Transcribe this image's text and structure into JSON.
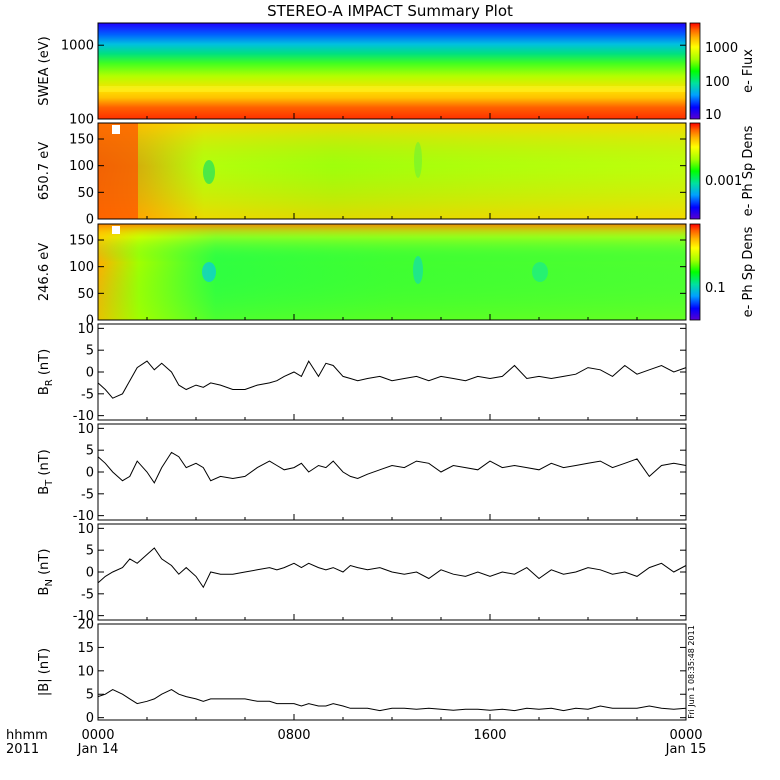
{
  "title": "STEREO-A IMPACT Summary Plot",
  "stamp": "Fri Jun 1 08:35:48 2011",
  "xaxis": {
    "corner_top": "hhmm",
    "corner_bottom": "2011",
    "ticks": [
      {
        "hours": 0,
        "label": "0000",
        "date": "Jan 14"
      },
      {
        "hours": 8,
        "label": "0800",
        "date": ""
      },
      {
        "hours": 16,
        "label": "1600",
        "date": ""
      },
      {
        "hours": 24,
        "label": "0000",
        "date": "Jan 15"
      }
    ],
    "range_hours": [
      0,
      24
    ]
  },
  "colors": {
    "palette": [
      "#5a00d0",
      "#0000ff",
      "#00a0ff",
      "#00e0a0",
      "#00ff00",
      "#a0ff00",
      "#ffff00",
      "#ffb000",
      "#ff6000",
      "#ff0000"
    ]
  },
  "chart_data": [
    {
      "type": "heatmap",
      "ylabel": "SWEA (eV)",
      "yscale": "log",
      "ylim": [
        100,
        2000
      ],
      "yticks": [
        {
          "v": 100,
          "label": "100"
        },
        {
          "v": 1000,
          "label": "1000"
        }
      ],
      "colorbar": {
        "label": "e- Flux",
        "scale": "log",
        "ticks": [
          {
            "label": "1000"
          },
          {
            "label": "100"
          },
          {
            "label": "10"
          }
        ]
      }
    },
    {
      "type": "heatmap",
      "ylabel": "650.7 eV",
      "ylim": [
        0,
        180
      ],
      "yticks": [
        {
          "v": 0,
          "label": "0"
        },
        {
          "v": 50,
          "label": "50"
        },
        {
          "v": 100,
          "label": "100"
        },
        {
          "v": 150,
          "label": "150"
        }
      ],
      "colorbar": {
        "label": "e- Ph Sp Dens",
        "scale": "log",
        "ticks": [
          {
            "label": "0.001"
          }
        ]
      }
    },
    {
      "type": "heatmap",
      "ylabel": "246.6 eV",
      "ylim": [
        0,
        180
      ],
      "yticks": [
        {
          "v": 0,
          "label": "0"
        },
        {
          "v": 50,
          "label": "50"
        },
        {
          "v": 100,
          "label": "100"
        },
        {
          "v": 150,
          "label": "150"
        }
      ],
      "colorbar": {
        "label": "e- Ph Sp Dens",
        "scale": "log",
        "ticks": [
          {
            "label": "0.1"
          }
        ]
      }
    },
    {
      "type": "line",
      "ylabel": "B",
      "ylabel_sub": "R",
      "ylabel_unit": "(nT)",
      "ylim": [
        -11,
        11
      ],
      "yticks": [
        {
          "v": -10,
          "label": "-10"
        },
        {
          "v": -5,
          "label": "-5"
        },
        {
          "v": 0,
          "label": "0"
        },
        {
          "v": 5,
          "label": "5"
        },
        {
          "v": 10,
          "label": "10"
        }
      ],
      "x": [
        0,
        0.3,
        0.6,
        1,
        1.3,
        1.6,
        2,
        2.3,
        2.6,
        3,
        3.3,
        3.6,
        4,
        4.3,
        4.6,
        5,
        5.5,
        6,
        6.5,
        7,
        7.3,
        7.6,
        8,
        8.3,
        8.6,
        9,
        9.3,
        9.6,
        10,
        10.3,
        10.6,
        11,
        11.5,
        12,
        12.5,
        13,
        13.5,
        14,
        14.5,
        15,
        15.5,
        16,
        16.5,
        17,
        17.5,
        18,
        18.5,
        19,
        19.5,
        20,
        20.5,
        21,
        21.5,
        22,
        22.5,
        23,
        23.5,
        24
      ],
      "values": [
        -2.5,
        -4,
        -6,
        -5,
        -2,
        1,
        2.5,
        0.5,
        2,
        0,
        -3,
        -4,
        -3,
        -3.5,
        -2.5,
        -3,
        -4,
        -4,
        -3,
        -2.5,
        -2,
        -1,
        0,
        -1,
        2.5,
        -1,
        2,
        1.5,
        -1,
        -1.5,
        -2,
        -1.5,
        -1,
        -2,
        -1.5,
        -1,
        -2,
        -1,
        -1.5,
        -2,
        -1,
        -1.5,
        -1,
        1.5,
        -1.5,
        -1,
        -1.5,
        -1,
        -0.5,
        1,
        0.5,
        -1,
        1.5,
        -0.5,
        0.5,
        1.5,
        0,
        1
      ]
    },
    {
      "type": "line",
      "ylabel": "B",
      "ylabel_sub": "T",
      "ylabel_unit": "(nT)",
      "ylim": [
        -11,
        11
      ],
      "yticks": [
        {
          "v": -10,
          "label": "-10"
        },
        {
          "v": -5,
          "label": "-5"
        },
        {
          "v": 0,
          "label": "0"
        },
        {
          "v": 5,
          "label": "5"
        },
        {
          "v": 10,
          "label": "10"
        }
      ],
      "x": [
        0,
        0.3,
        0.6,
        1,
        1.3,
        1.6,
        2,
        2.3,
        2.6,
        3,
        3.3,
        3.6,
        4,
        4.3,
        4.6,
        5,
        5.5,
        6,
        6.5,
        7,
        7.3,
        7.6,
        8,
        8.3,
        8.6,
        9,
        9.3,
        9.6,
        10,
        10.3,
        10.6,
        11,
        11.5,
        12,
        12.5,
        13,
        13.5,
        14,
        14.5,
        15,
        15.5,
        16,
        16.5,
        17,
        17.5,
        18,
        18.5,
        19,
        19.5,
        20,
        20.5,
        21,
        21.5,
        22,
        22.5,
        23,
        23.5,
        24
      ],
      "values": [
        3.5,
        2,
        0,
        -2,
        -1,
        2.5,
        0,
        -2.5,
        1,
        4.5,
        3.5,
        1,
        2,
        1,
        -2,
        -1,
        -1.5,
        -1,
        1,
        2.5,
        1.5,
        0.5,
        1,
        2,
        0,
        1.5,
        1,
        2.5,
        0,
        -1,
        -1.5,
        -0.5,
        0.5,
        1.5,
        1,
        2.5,
        2,
        0,
        1.5,
        1,
        0.5,
        2.5,
        1,
        1.5,
        1,
        0.5,
        2,
        1,
        1.5,
        2,
        2.5,
        1,
        2,
        3,
        -1,
        1.5,
        2,
        1.5
      ]
    },
    {
      "type": "line",
      "ylabel": "B",
      "ylabel_sub": "N",
      "ylabel_unit": "(nT)",
      "ylim": [
        -11,
        11
      ],
      "yticks": [
        {
          "v": -10,
          "label": "-10"
        },
        {
          "v": -5,
          "label": "-5"
        },
        {
          "v": 0,
          "label": "0"
        },
        {
          "v": 5,
          "label": "5"
        },
        {
          "v": 10,
          "label": "10"
        }
      ],
      "x": [
        0,
        0.3,
        0.6,
        1,
        1.3,
        1.6,
        2,
        2.3,
        2.6,
        3,
        3.3,
        3.6,
        4,
        4.3,
        4.6,
        5,
        5.5,
        6,
        6.5,
        7,
        7.3,
        7.6,
        8,
        8.3,
        8.6,
        9,
        9.3,
        9.6,
        10,
        10.3,
        10.6,
        11,
        11.5,
        12,
        12.5,
        13,
        13.5,
        14,
        14.5,
        15,
        15.5,
        16,
        16.5,
        17,
        17.5,
        18,
        18.5,
        19,
        19.5,
        20,
        20.5,
        21,
        21.5,
        22,
        22.5,
        23,
        23.5,
        24
      ],
      "values": [
        -2.5,
        -1,
        0,
        1,
        3,
        2,
        4,
        5.5,
        3,
        1.5,
        -0.5,
        1,
        -1,
        -3.5,
        0,
        -0.5,
        -0.5,
        0,
        0.5,
        1,
        0.5,
        1,
        2,
        1,
        2,
        1,
        0.5,
        1,
        0,
        1.5,
        1,
        0.5,
        1,
        0,
        -0.5,
        0,
        -1.5,
        0.5,
        -0.5,
        -1,
        0,
        -1,
        0,
        -0.5,
        1,
        -1.5,
        0.5,
        -0.5,
        0,
        1,
        0.5,
        -0.5,
        0,
        -1,
        1,
        2,
        0,
        1.5
      ]
    },
    {
      "type": "line",
      "ylabel": "|B|",
      "ylabel_unit": "(nT)",
      "ylim": [
        -0.5,
        20
      ],
      "yticks": [
        {
          "v": 0,
          "label": "0"
        },
        {
          "v": 5,
          "label": "5"
        },
        {
          "v": 10,
          "label": "10"
        },
        {
          "v": 15,
          "label": "15"
        },
        {
          "v": 20,
          "label": "20"
        }
      ],
      "x": [
        0,
        0.3,
        0.6,
        1,
        1.3,
        1.6,
        2,
        2.3,
        2.6,
        3,
        3.3,
        3.6,
        4,
        4.3,
        4.6,
        5,
        5.5,
        6,
        6.5,
        7,
        7.3,
        7.6,
        8,
        8.3,
        8.6,
        9,
        9.3,
        9.6,
        10,
        10.3,
        10.6,
        11,
        11.5,
        12,
        12.5,
        13,
        13.5,
        14,
        14.5,
        15,
        15.5,
        16,
        16.5,
        17,
        17.5,
        18,
        18.5,
        19,
        19.5,
        20,
        20.5,
        21,
        21.5,
        22,
        22.5,
        23,
        23.5,
        24
      ],
      "values": [
        4.5,
        5,
        6,
        5,
        4,
        3,
        3.5,
        4,
        5,
        6,
        5,
        4.5,
        4,
        3.5,
        4,
        4,
        4,
        4,
        3.5,
        3.5,
        3,
        3,
        3,
        2.5,
        3,
        2.5,
        2.5,
        3,
        2.5,
        2,
        2,
        2,
        1.5,
        2,
        2,
        1.8,
        2,
        1.8,
        1.6,
        1.8,
        1.8,
        1.6,
        1.8,
        1.5,
        2,
        1.8,
        2,
        1.5,
        2,
        1.8,
        2.5,
        2,
        2,
        2,
        2.5,
        2,
        1.8,
        2
      ]
    }
  ]
}
